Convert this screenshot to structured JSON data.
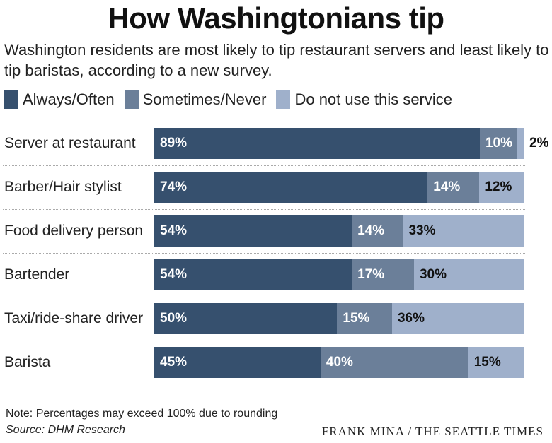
{
  "title": "How Washingtonians tip",
  "subtitle": "Washington residents are most likely to tip restaurant servers and least likely to tip baristas, according to a new survey.",
  "note": "Note: Percentages may exceed 100% due to rounding",
  "source": "Source: DHM Research",
  "credit": "FRANK MINA / THE SEATTLE TIMES",
  "chart_data": {
    "type": "bar",
    "orientation": "horizontal-stacked",
    "title": "How Washingtonians tip",
    "categories": [
      "Server at restaurant",
      "Barber/Hair stylist",
      "Food delivery person",
      "Bartender",
      "Taxi/ride-share driver",
      "Barista"
    ],
    "series": [
      {
        "name": "Always/Often",
        "color": "#36506e",
        "values": [
          89,
          74,
          54,
          54,
          50,
          45
        ]
      },
      {
        "name": "Sometimes/Never",
        "color": "#6b7f99",
        "values": [
          10,
          14,
          14,
          17,
          15,
          40
        ]
      },
      {
        "name": "Do not use this service",
        "color": "#9fb0cb",
        "values": [
          2,
          12,
          33,
          30,
          36,
          15
        ]
      }
    ],
    "unit": "%",
    "legend": "top-left"
  }
}
